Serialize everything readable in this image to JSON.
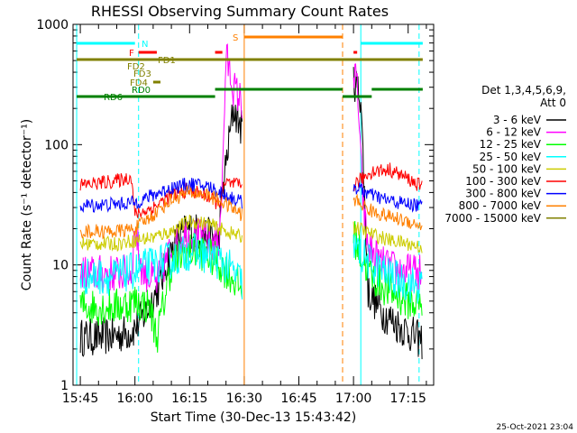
{
  "chart_data": {
    "type": "line",
    "title": "RHESSI Observing Summary Count Rates",
    "xlabel": "Start Time (30-Dec-13 15:43:42)",
    "ylabel": "Count Rate (s⁻¹ detector⁻¹)",
    "y_scale": "log",
    "ylim": [
      1,
      1000
    ],
    "x_range": [
      "15:43:42",
      "17:22:00"
    ],
    "x_ticks": [
      "15:45",
      "16:00",
      "16:15",
      "16:30",
      "16:45",
      "17:00",
      "17:15"
    ],
    "y_tick_labels": [
      "1",
      "10",
      "100",
      "1000"
    ],
    "grid": false,
    "legend_position": "right",
    "legend_title": "Det 1,3,4,5,6,9,",
    "legend_subtitle": "Att 0",
    "footer_date": "25-Oct-2021 23:04",
    "series": [
      {
        "name": "3 - 6 keV",
        "color": "#000000",
        "times": [
          "15:45",
          "15:50",
          "15:55",
          "15:59",
          "16:00",
          "16:03",
          "16:07",
          "16:09",
          "16:12",
          "16:15",
          "16:19",
          "16:23",
          "16:24",
          "16:27",
          "16:29.5",
          "17:00",
          "17:02",
          "17:04",
          "17:08",
          "17:12",
          "17:18",
          "17:19"
        ],
        "values": [
          2.5,
          2.5,
          2.6,
          2.8,
          3,
          4,
          7,
          11,
          17,
          20,
          18,
          16,
          40,
          200,
          130,
          350,
          250,
          6,
          4,
          3.2,
          2.4,
          2.3
        ]
      },
      {
        "name": "6 - 12 keV",
        "color": "#ff00ff",
        "times": [
          "15:45",
          "15:55",
          "15:59",
          "16:00",
          "16:02",
          "16:06",
          "16:10",
          "16:14",
          "16:18",
          "16:22",
          "16:23",
          "16:24",
          "16:25",
          "16:27",
          "16:29.5",
          "17:00",
          "17:01",
          "17:02",
          "17:03",
          "17:04",
          "17:08",
          "17:12",
          "17:18",
          "17:19"
        ],
        "values": [
          8.5,
          8.5,
          8.5,
          20,
          9,
          7,
          14,
          18,
          17,
          15,
          16,
          50,
          550,
          300,
          220,
          360,
          330,
          70,
          25,
          14,
          10,
          9,
          8.5,
          8.5
        ]
      },
      {
        "name": "12 - 25 keV",
        "color": "#00ff00",
        "times": [
          "15:45",
          "15:55",
          "15:59",
          "16:00",
          "16:04",
          "16:06",
          "16:08",
          "16:10",
          "16:14",
          "16:18",
          "16:22",
          "16:25",
          "16:28",
          "16:29.5",
          "17:00",
          "17:02",
          "17:05",
          "17:10",
          "17:15",
          "17:19"
        ],
        "values": [
          4.5,
          4.5,
          4.8,
          5,
          4.5,
          2.5,
          5,
          10,
          13,
          13,
          11,
          9,
          7,
          6,
          18,
          12,
          8,
          6,
          5,
          4.5
        ]
      },
      {
        "name": "25 - 50 keV",
        "color": "#00ffff",
        "times": [
          "15:45",
          "15:55",
          "16:00",
          "16:05",
          "16:10",
          "16:15",
          "16:20",
          "16:25",
          "16:28",
          "16:29.5",
          "17:00",
          "17:05",
          "17:10",
          "17:15",
          "17:19"
        ],
        "values": [
          8,
          8,
          9,
          10,
          11,
          13,
          12,
          10,
          8,
          7,
          14,
          10,
          8,
          7,
          6.5
        ]
      },
      {
        "name": "50 - 100 keV",
        "color": "#cccc00",
        "times": [
          "15:45",
          "15:55",
          "16:00",
          "16:05",
          "16:10",
          "16:15",
          "16:20",
          "16:25",
          "16:29.5",
          "17:00",
          "17:05",
          "17:10",
          "17:15",
          "17:19"
        ],
        "values": [
          15,
          15,
          16,
          17,
          19,
          23,
          22,
          19,
          17,
          21,
          18,
          16,
          15,
          14
        ]
      },
      {
        "name": "100 - 300 keV",
        "color": "#ff0000",
        "times": [
          "15:45",
          "15:55",
          "15:59",
          "16:00",
          "16:05",
          "16:10",
          "16:15",
          "16:20",
          "16:23",
          "16:25",
          "16:29.5",
          "17:00",
          "17:05",
          "17:10",
          "17:15",
          "17:19"
        ],
        "values": [
          46,
          50,
          54,
          26,
          30,
          38,
          42,
          37,
          32,
          48,
          45,
          46,
          60,
          62,
          52,
          44
        ]
      },
      {
        "name": "300 - 800 keV",
        "color": "#0000ff",
        "times": [
          "15:45",
          "15:55",
          "16:00",
          "16:05",
          "16:10",
          "16:15",
          "16:20",
          "16:25",
          "16:29.5",
          "17:00",
          "17:05",
          "17:10",
          "17:15",
          "17:19"
        ],
        "values": [
          31,
          32,
          33,
          38,
          44,
          47,
          45,
          38,
          33,
          45,
          38,
          34,
          32,
          31
        ]
      },
      {
        "name": "800 - 7000 keV",
        "color": "#ff8000",
        "times": [
          "15:45",
          "15:55",
          "16:00",
          "16:05",
          "16:10",
          "16:15",
          "16:20",
          "16:25",
          "16:29.5",
          "17:00",
          "17:05",
          "17:10",
          "17:15",
          "17:19"
        ],
        "values": [
          19,
          19,
          20,
          26,
          35,
          40,
          38,
          32,
          26,
          35,
          28,
          25,
          23,
          21
        ]
      },
      {
        "name": "7000 - 15000 keV",
        "color": "#808000",
        "times": [],
        "values": []
      }
    ],
    "flag_bars": [
      {
        "label": "N",
        "color": "#00ffff",
        "segments": [
          [
            "15:44",
            "16:00"
          ],
          [
            "17:02",
            "17:19"
          ]
        ]
      },
      {
        "label": "F",
        "color": "#ff0000",
        "segments": [
          [
            "16:01",
            "16:06"
          ],
          [
            "16:22",
            "16:24"
          ],
          [
            "17:00",
            "17:01"
          ]
        ]
      },
      {
        "label": "S",
        "color": "#ff8000",
        "segments": [
          [
            "16:30",
            "16:57"
          ]
        ]
      },
      {
        "label": "FD1",
        "color": "#808000",
        "segments": [
          [
            "15:44",
            "17:19"
          ]
        ]
      },
      {
        "label": "FD2",
        "color": "#808000",
        "segments": []
      },
      {
        "label": "FD3",
        "color": "#808000",
        "segments": []
      },
      {
        "label": "FD4",
        "color": "#808000",
        "segments": [
          [
            "16:05",
            "16:07"
          ]
        ]
      },
      {
        "label": "RD0",
        "color": "#008000",
        "segments": [
          [
            "16:22",
            "16:57"
          ],
          [
            "17:05",
            "17:19"
          ]
        ]
      },
      {
        "label": "RD6",
        "color": "#008000",
        "segments": [
          [
            "15:44",
            "16:22"
          ],
          [
            "16:57",
            "17:05"
          ]
        ]
      }
    ],
    "vlines": [
      {
        "time": "15:44",
        "color": "#00ffff",
        "style": "solid"
      },
      {
        "time": "16:01",
        "color": "#00ffff",
        "style": "dashed"
      },
      {
        "time": "16:30",
        "color": "#ff8000",
        "style": "solid"
      },
      {
        "time": "16:57",
        "color": "#ff8000",
        "style": "dashed"
      },
      {
        "time": "17:02",
        "color": "#00ffff",
        "style": "solid"
      },
      {
        "time": "17:18",
        "color": "#00ffff",
        "style": "dashed"
      }
    ]
  }
}
